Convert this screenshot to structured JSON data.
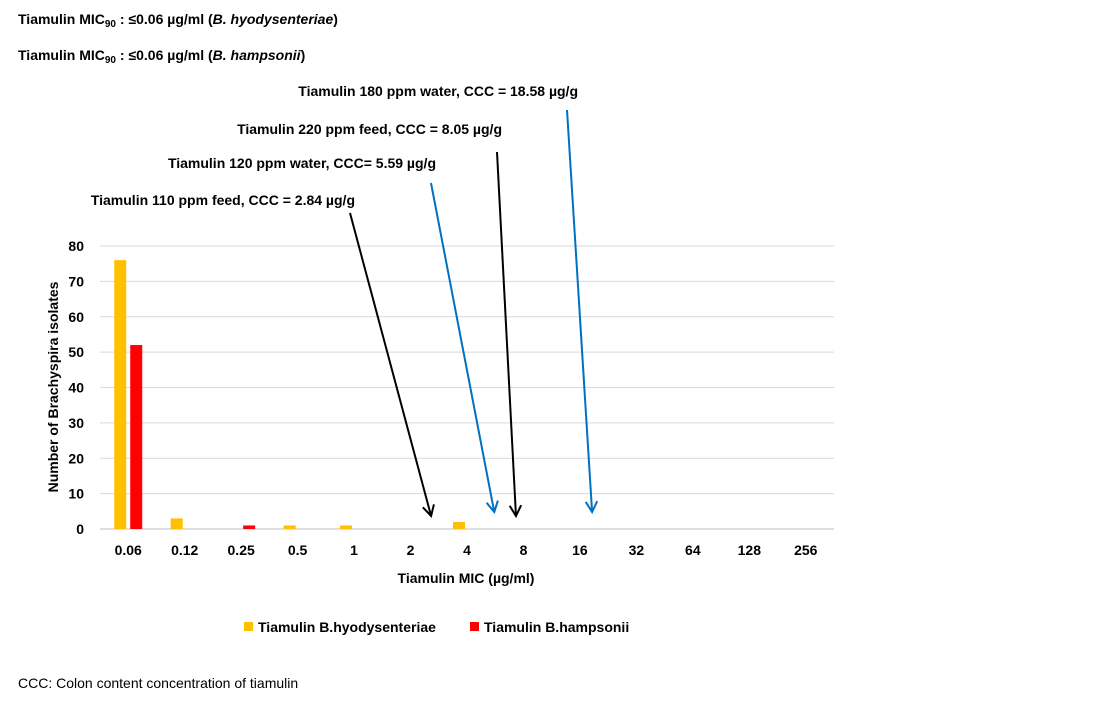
{
  "header": {
    "line1": {
      "prefix": "Tiamulin MIC",
      "sub": "90",
      "mid": " : ≤0.06 µg/ml (",
      "species": "B. hyodysenteriae",
      "suffix": ")"
    },
    "line2": {
      "prefix": "Tiamulin MIC",
      "sub": "90",
      "mid": " : ≤0.06 µg/ml (",
      "species": "B. hampsonii",
      "suffix": ")"
    }
  },
  "footnote": "CCC: Colon content concentration of tiamulin",
  "colors": {
    "hyo": "#FFC000",
    "hamp": "#FF0000",
    "black_arrow": "#000000",
    "blue_arrow": "#0070C0",
    "grid": "#D9D9D9"
  },
  "chart_data": {
    "type": "bar",
    "xlabel": "Tiamulin MIC (µg/ml)",
    "ylabel": "Number of Brachyspira isolates",
    "ylim": [
      0,
      80
    ],
    "yticks": [
      0,
      10,
      20,
      30,
      40,
      50,
      60,
      70,
      80
    ],
    "grid": true,
    "legend_position": "bottom",
    "categories": [
      "0.06",
      "0.12",
      "0.25",
      "0.5",
      "1",
      "2",
      "4",
      "8",
      "16",
      "32",
      "64",
      "128",
      "256"
    ],
    "series": [
      {
        "name": "Tiamulin B.hyodysenteriae",
        "color": "#FFC000",
        "values": [
          76,
          3,
          0,
          1,
          1,
          0,
          2,
          0,
          0,
          0,
          0,
          0,
          0
        ]
      },
      {
        "name": "Tiamulin B.hampsonii",
        "color": "#FF0000",
        "values": [
          52,
          0,
          1,
          0,
          0,
          0,
          0,
          0,
          0,
          0,
          0,
          0,
          0
        ]
      }
    ],
    "annotations": [
      {
        "text": "Tiamulin 110 ppm feed, CCC = 2.84 µg/g",
        "value": 2.84,
        "color": "black"
      },
      {
        "text": "Tiamulin 120 ppm water, CCC= 5.59 µg/g",
        "value": 5.59,
        "color": "blue"
      },
      {
        "text": "Tiamulin 220 ppm feed, CCC = 8.05 µg/g",
        "value": 8.05,
        "color": "black"
      },
      {
        "text": "Tiamulin 180 ppm water, CCC = 18.58 µg/g",
        "value": 18.58,
        "color": "blue"
      }
    ]
  }
}
